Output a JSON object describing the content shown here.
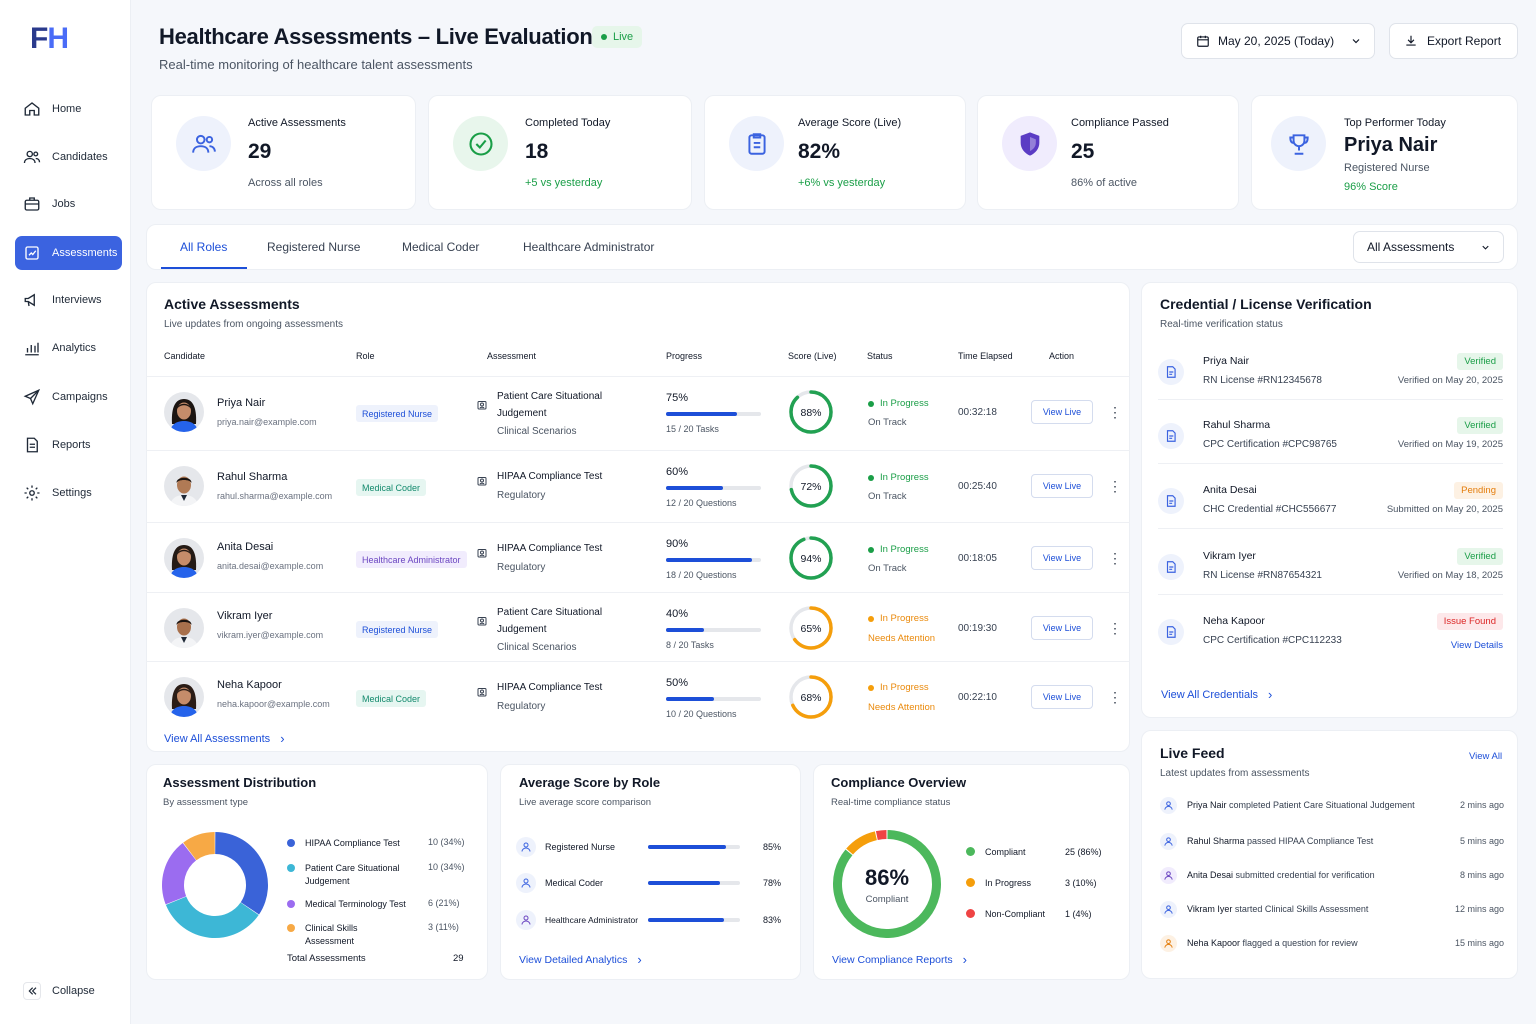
{
  "logo": "FH",
  "nav": [
    {
      "label": "Home",
      "icon": "home-icon"
    },
    {
      "label": "Candidates",
      "icon": "users-icon"
    },
    {
      "label": "Jobs",
      "icon": "briefcase-icon"
    },
    {
      "label": "Assessments",
      "icon": "clipboard-icon"
    },
    {
      "label": "Interviews",
      "icon": "megaphone-icon"
    },
    {
      "label": "Analytics",
      "icon": "bar-chart-icon"
    },
    {
      "label": "Campaigns",
      "icon": "send-icon"
    },
    {
      "label": "Reports",
      "icon": "document-icon"
    },
    {
      "label": "Settings",
      "icon": "gear-icon"
    }
  ],
  "collapse": "Collapse",
  "header": {
    "title": "Healthcare Assessments – Live Evaluation",
    "live": "Live",
    "subtitle": "Real-time monitoring of healthcare talent assessments",
    "date": "May 20, 2025 (Today)",
    "export": "Export Report"
  },
  "stats": [
    {
      "title": "Active Assessments",
      "value": "29",
      "sub": "Across all roles"
    },
    {
      "title": "Completed Today",
      "value": "18",
      "sub": "+5 vs yesterday"
    },
    {
      "title": "Average Score (Live)",
      "value": "82%",
      "sub": "+6% vs yesterday"
    },
    {
      "title": "Compliance Passed",
      "value": "25",
      "sub": "86% of active"
    },
    {
      "title": "Top Performer Today",
      "value": "Priya Nair",
      "sub": "Registered Nurse",
      "extra": "96% Score"
    }
  ],
  "tabs": [
    "All Roles",
    "Registered Nurse",
    "Medical Coder",
    "Healthcare Administrator"
  ],
  "filter": "All Assessments",
  "active": {
    "title": "Active Assessments",
    "subtitle": "Live updates from ongoing assessments",
    "columns": [
      "Candidate",
      "Role",
      "Assessment",
      "Progress",
      "Score (Live)",
      "Status",
      "Time Elapsed",
      "Action"
    ],
    "rows": [
      {
        "name": "Priya Nair",
        "email": "priya.nair@example.com",
        "role": "Registered Nurse",
        "assessment": "Patient Care Situational Judgement",
        "category": "Clinical Scenarios",
        "pct": "75%",
        "progress": 0.75,
        "tasks": "15 / 20 Tasks",
        "score": "88%",
        "score_val": 0.88,
        "status": "In Progress",
        "sub": "On Track",
        "time": "00:32:18",
        "action": "View Live"
      },
      {
        "name": "Rahul Sharma",
        "email": "rahul.sharma@example.com",
        "role": "Medical Coder",
        "assessment": "HIPAA Compliance Test",
        "category": "Regulatory",
        "pct": "60%",
        "progress": 0.6,
        "tasks": "12 / 20 Questions",
        "score": "72%",
        "score_val": 0.72,
        "status": "In Progress",
        "sub": "On Track",
        "time": "00:25:40",
        "action": "View Live"
      },
      {
        "name": "Anita Desai",
        "email": "anita.desai@example.com",
        "role": "Healthcare Administrator",
        "assessment": "HIPAA Compliance Test",
        "category": "Regulatory",
        "pct": "90%",
        "progress": 0.9,
        "tasks": "18 / 20 Questions",
        "score": "94%",
        "score_val": 0.94,
        "status": "In Progress",
        "sub": "On Track",
        "time": "00:18:05",
        "action": "View Live"
      },
      {
        "name": "Vikram Iyer",
        "email": "vikram.iyer@example.com",
        "role": "Registered Nurse",
        "assessment": "Patient Care Situational Judgement",
        "category": "Clinical Scenarios",
        "pct": "40%",
        "progress": 0.4,
        "tasks": "8 / 20 Tasks",
        "score": "65%",
        "score_val": 0.65,
        "status": "In Progress",
        "sub": "Needs Attention",
        "time": "00:19:30",
        "action": "View Live"
      },
      {
        "name": "Neha Kapoor",
        "email": "neha.kapoor@example.com",
        "role": "Medical Coder",
        "assessment": "HIPAA Compliance Test",
        "category": "Regulatory",
        "pct": "50%",
        "progress": 0.5,
        "tasks": "10 / 20 Questions",
        "score": "68%",
        "score_val": 0.68,
        "status": "In Progress",
        "sub": "Needs Attention",
        "time": "00:22:10",
        "action": "View Live"
      }
    ],
    "view_all": "View All Assessments"
  },
  "credentials": {
    "title": "Credential / License Verification",
    "subtitle": "Real-time verification status",
    "items": [
      {
        "name": "Priya Nair",
        "license": "RN License #RN12345678",
        "badge": "Verified",
        "date": "Verified on May 20, 2025"
      },
      {
        "name": "Rahul Sharma",
        "license": "CPC Certification #CPC98765",
        "badge": "Verified",
        "date": "Verified on May 19, 2025"
      },
      {
        "name": "Anita Desai",
        "license": "CHC Credential #CHC556677",
        "badge": "Pending",
        "date": "Submitted on May 20, 2025"
      },
      {
        "name": "Vikram Iyer",
        "license": "RN License #RN87654321",
        "badge": "Verified",
        "date": "Verified on May 18, 2025"
      },
      {
        "name": "Neha Kapoor",
        "license": "CPC Certification #CPC112233",
        "badge": "Issue Found",
        "date": "View Details"
      }
    ],
    "view_all": "View All Credentials"
  },
  "distribution": {
    "title": "Assessment Distribution",
    "subtitle": "By assessment type",
    "chart_data": {
      "type": "pie",
      "donut": true,
      "categories": [
        "HIPAA Compliance Test",
        "Patient Care Situational Judgement",
        "Medical Terminology Test",
        "Clinical Skills Assessment"
      ],
      "values": [
        10,
        10,
        6,
        3
      ],
      "labels": [
        "10 (34%)",
        "10 (34%)",
        "6 (21%)",
        "3 (11%)"
      ],
      "colors": [
        "#3a63d8",
        "#3db7d6",
        "#9b6cf0",
        "#f7a945"
      ]
    },
    "total_label": "Total Assessments",
    "total": "29"
  },
  "avg_role": {
    "title": "Average Score by Role",
    "subtitle": "Live average score comparison",
    "chart_data": {
      "type": "bar",
      "orientation": "horizontal",
      "categories": [
        "Registered Nurse",
        "Medical Coder",
        "Healthcare Administrator"
      ],
      "values": [
        85,
        78,
        83
      ],
      "labels": [
        "85%",
        "78%",
        "83%"
      ],
      "xlim": [
        0,
        100
      ]
    },
    "link": "View Detailed Analytics"
  },
  "compliance": {
    "title": "Compliance Overview",
    "subtitle": "Real-time compliance status",
    "center_value": "86%",
    "center_label": "Compliant",
    "chart_data": {
      "type": "pie",
      "donut": true,
      "categories": [
        "Compliant",
        "In Progress",
        "Non-Compliant"
      ],
      "values": [
        25,
        3,
        1
      ],
      "labels": [
        "25 (86%)",
        "3 (10%)",
        "1 (4%)"
      ],
      "colors": [
        "#4cb85c",
        "#f59e0b",
        "#ef4444"
      ]
    },
    "link": "View Compliance Reports"
  },
  "feed": {
    "title": "Live Feed",
    "view_all": "View All",
    "subtitle": "Latest updates from assessments",
    "items": [
      {
        "who": "Priya Nair",
        "what": " completed Patient Care Situational Judgement",
        "time": "2 mins ago"
      },
      {
        "who": "Rahul Sharma",
        "what": " passed HIPAA Compliance Test",
        "time": "5 mins ago"
      },
      {
        "who": "Anita Desai",
        "what": " submitted credential for verification",
        "time": "8 mins ago"
      },
      {
        "who": "Vikram Iyer",
        "what": " started Clinical Skills Assessment",
        "time": "12 mins ago"
      },
      {
        "who": "Neha Kapoor",
        "what": " flagged a question for review",
        "time": "15 mins ago"
      }
    ]
  },
  "colors": {
    "primary": "#3b63e0",
    "success": "#1a9e47",
    "warning": "#f59e0b",
    "danger": "#ef4444"
  }
}
